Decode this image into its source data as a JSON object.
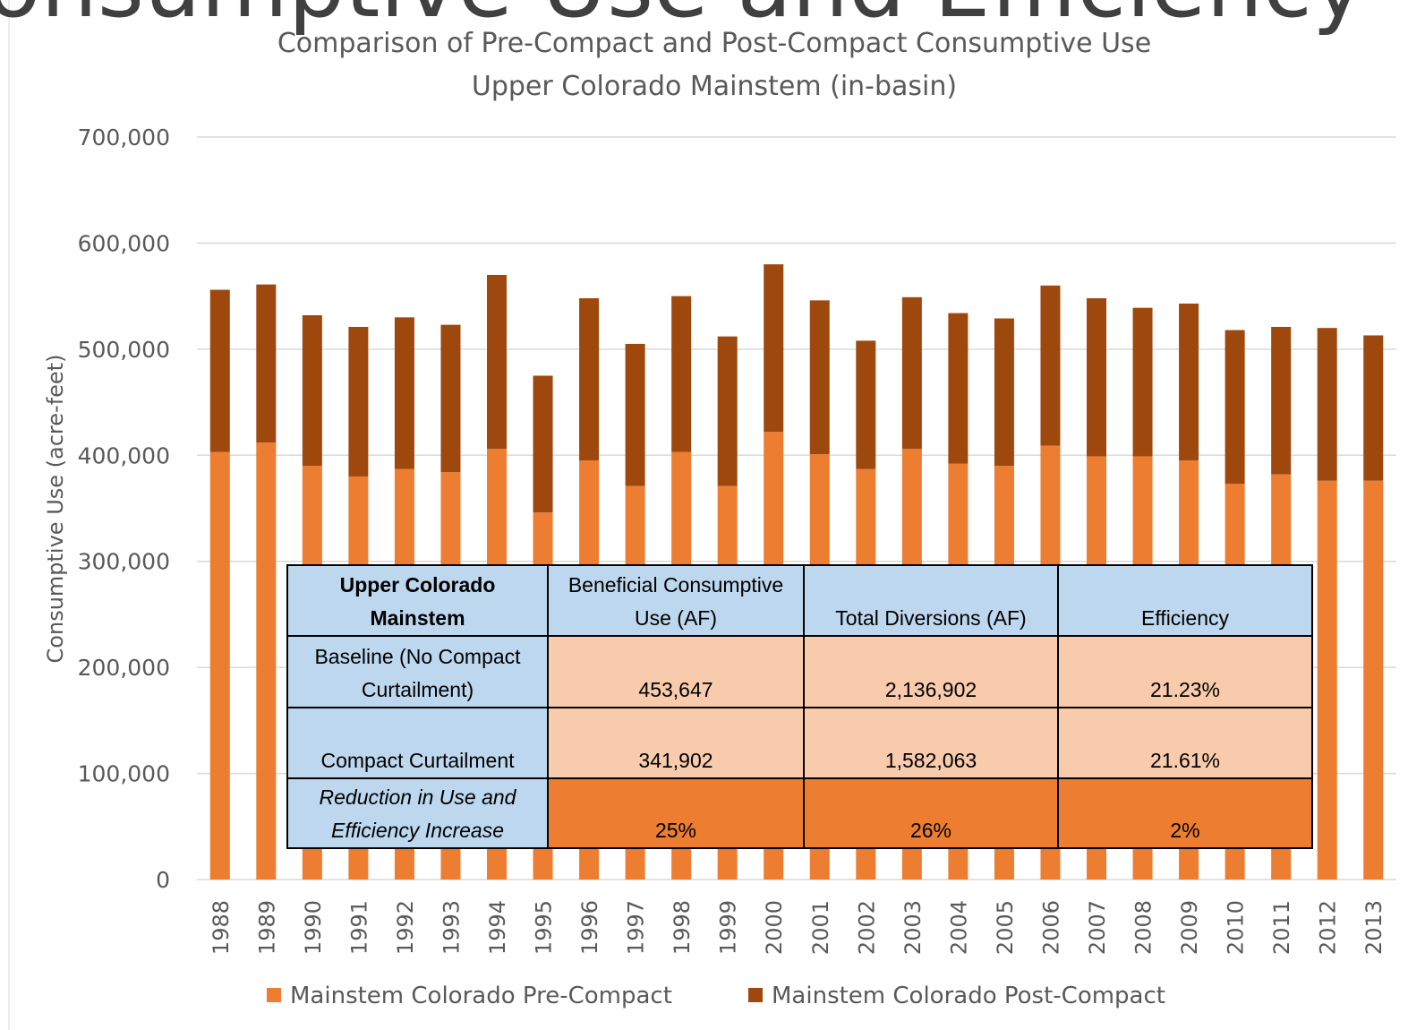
{
  "page_title": "Consumptive Use and Efficiency",
  "chart_data": {
    "type": "stacked_bar",
    "title": "Comparison of Pre-Compact and Post-Compact Consumptive Use",
    "subtitle": "Upper Colorado Mainstem (in-basin)",
    "y_label": "Consumptive Use (acre-feet)",
    "categories": [
      "1988",
      "1989",
      "1990",
      "1991",
      "1992",
      "1993",
      "1994",
      "1995",
      "1996",
      "1997",
      "1998",
      "1999",
      "2000",
      "2001",
      "2002",
      "2003",
      "2004",
      "2005",
      "2006",
      "2007",
      "2008",
      "2009",
      "2010",
      "2011",
      "2012",
      "2013"
    ],
    "series": [
      {
        "name": "Mainstem Colorado Pre-Compact",
        "color": "#ed7d31",
        "values": [
          403000,
          412000,
          390000,
          380000,
          387000,
          384000,
          406000,
          346000,
          395000,
          371000,
          403000,
          371000,
          422000,
          401000,
          387000,
          406000,
          392000,
          390000,
          409000,
          399000,
          399000,
          395000,
          373000,
          382000,
          376000,
          376000
        ]
      },
      {
        "name": "Mainstem Colorado Post-Compact",
        "color": "#9e480e",
        "values": [
          153000,
          149000,
          142000,
          141000,
          143000,
          139000,
          164000,
          129000,
          153000,
          134000,
          147000,
          141000,
          158000,
          145000,
          121000,
          143000,
          142000,
          139000,
          151000,
          149000,
          140000,
          148000,
          145000,
          139000,
          144000,
          137000
        ]
      }
    ],
    "ylim": [
      0,
      700000
    ],
    "yticks": [
      0,
      {
        "value": 100000,
        "label": "100,000"
      },
      {
        "value": 200000,
        "label": "200,000"
      },
      {
        "value": 300000,
        "label": "300,000"
      },
      {
        "value": 400000,
        "label": "400,000"
      },
      {
        "value": 500000,
        "label": "500,000"
      },
      {
        "value": 600000,
        "label": "600,000"
      },
      {
        "value": 700000,
        "label": "700,000"
      }
    ],
    "grid": true,
    "legend": "bottom"
  },
  "table": {
    "header": [
      "Upper Colorado Mainstem",
      "Beneficial Consumptive Use (AF)",
      "Total Diversions (AF)",
      "Efficiency"
    ],
    "rows": [
      [
        "Baseline (No Compact Curtailment)",
        "453,647",
        "2,136,902",
        "21.23%"
      ],
      [
        "Compact Curtailment",
        "341,902",
        "1,582,063",
        "21.61%"
      ],
      [
        "Reduction in Use and Efficiency Increase",
        "25%",
        "26%",
        "2%"
      ]
    ]
  }
}
